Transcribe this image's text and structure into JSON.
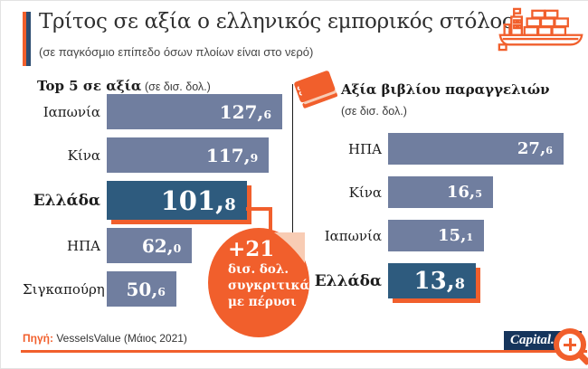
{
  "title": "Τρίτος σε αξία ο ελληνικός εμπορικός στόλος",
  "subtitle": "(σε παγκόσμιο επίπεδο όσων πλοίων είναι στο νερό)",
  "colors": {
    "accent_orange": "#f15f2c",
    "bar_blue_gray": "#707e9f",
    "highlight_blue": "#2e5b7e",
    "logo_navy": "#16355c",
    "fold_peach": "#f8ccb4"
  },
  "icons": {
    "ship": "cargo-ship-icon",
    "book": "order-book-icon",
    "magnifier": "magnifier-plus-icon"
  },
  "chart_data": [
    {
      "type": "bar",
      "orientation": "horizontal",
      "title": "Top 5 σε αξία",
      "unit": "(σε δισ. δολ.)",
      "categories": [
        "Ιαπωνία",
        "Κίνα",
        "Ελλάδα",
        "ΗΠΑ",
        "Σιγκαπούρη"
      ],
      "values": [
        127.6,
        117.9,
        101.8,
        62.0,
        50.6
      ],
      "value_labels": [
        "127,6",
        "117,9",
        "101,8",
        "62,0",
        "50,6"
      ],
      "highlight": "Ελλάδα",
      "xlim": [
        0,
        127.6
      ],
      "grid": false,
      "legend": false
    },
    {
      "type": "bar",
      "orientation": "horizontal",
      "title": "Αξία βιβλίου παραγγελιών",
      "unit": "(σε δισ. δολ.)",
      "categories": [
        "ΗΠΑ",
        "Κίνα",
        "Ιαπωνία",
        "Ελλάδα"
      ],
      "values": [
        27.6,
        16.5,
        15.1,
        13.8
      ],
      "value_labels": [
        "27,6",
        "16,5",
        "15,1",
        "13,8"
      ],
      "highlight": "Ελλάδα",
      "xlim": [
        0,
        27.6
      ],
      "grid": false,
      "legend": false
    }
  ],
  "callout": {
    "value": "+21",
    "lines": [
      "δισ. δολ.",
      "συγκριτικά",
      "με πέρυσι"
    ]
  },
  "source": {
    "label": "Πηγή:",
    "text": "VesselsValue (Μάιος 2021)"
  },
  "logo": {
    "text": "Capital.gr"
  }
}
